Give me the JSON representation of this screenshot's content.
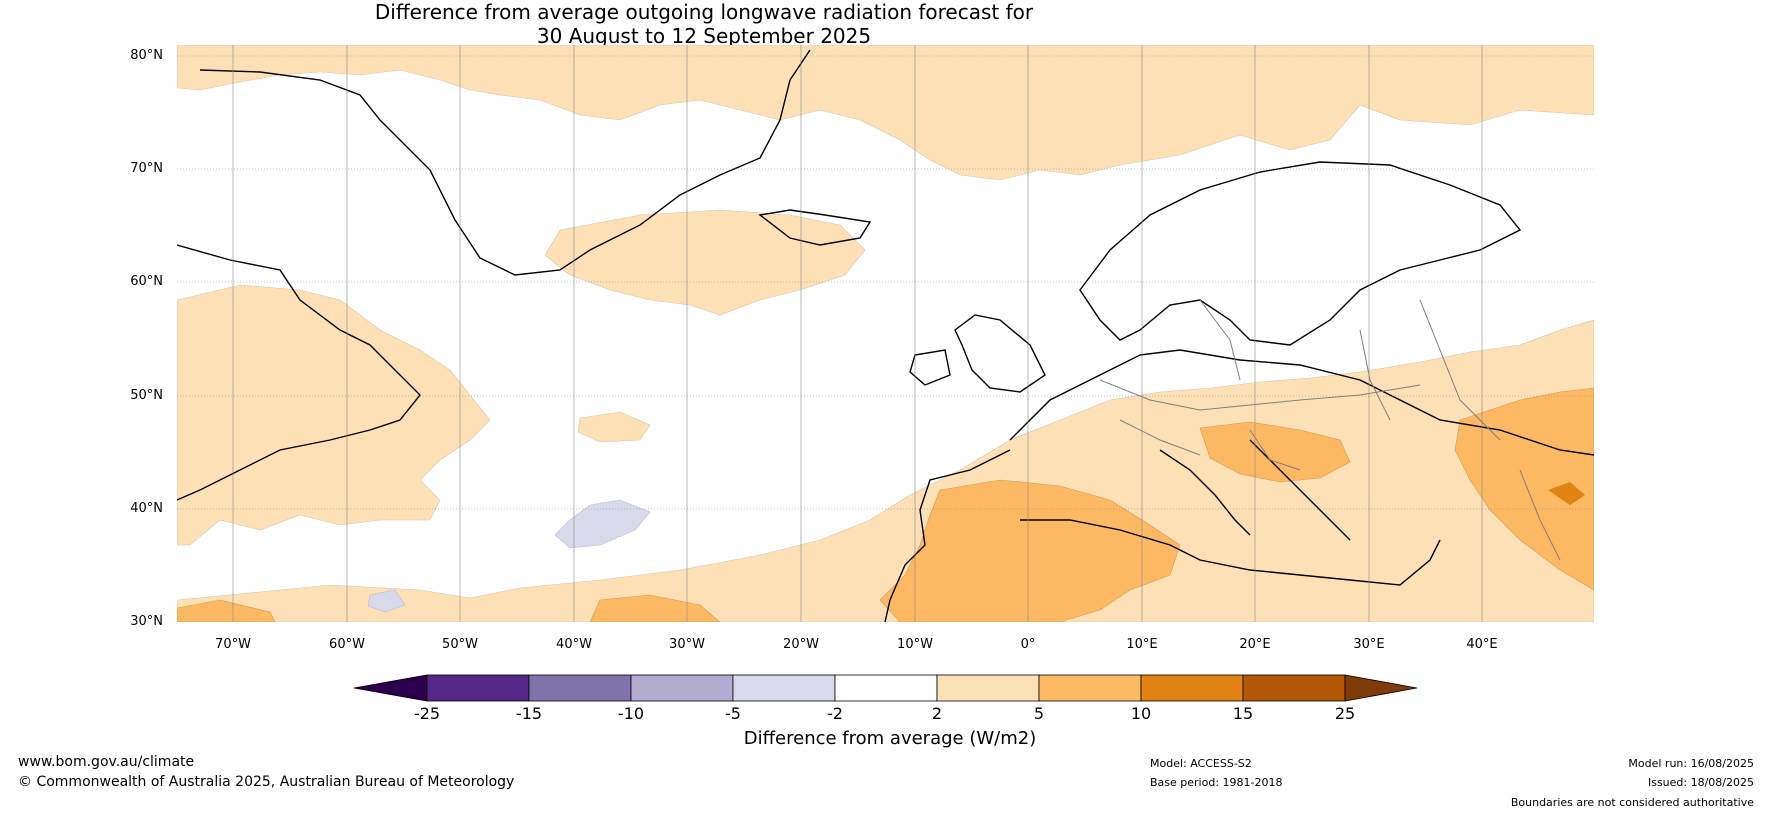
{
  "title": {
    "line1": "Difference from average outgoing longwave radiation forecast for",
    "line2": "30 August to 12 September 2025"
  },
  "axes": {
    "lat_labels": [
      "80°N",
      "70°N",
      "60°N",
      "50°N",
      "40°N",
      "30°N"
    ],
    "lon_labels": [
      "70°W",
      "60°W",
      "50°W",
      "40°W",
      "30°W",
      "20°W",
      "10°W",
      "0°",
      "10°E",
      "20°E",
      "30°E",
      "40°E"
    ]
  },
  "colorbar": {
    "title": "Difference from average (W/m2)",
    "tick_labels": [
      "-25",
      "-15",
      "-10",
      "-5",
      "-2",
      "2",
      "5",
      "10",
      "15",
      "25"
    ],
    "bins": [
      {
        "range": "< -25",
        "color": "#2d004b"
      },
      {
        "range": "-25 to -15",
        "color": "#542788"
      },
      {
        "range": "-15 to -10",
        "color": "#8073ac"
      },
      {
        "range": "-10 to -5",
        "color": "#b2abd2"
      },
      {
        "range": "-5 to -2",
        "color": "#d8daeb"
      },
      {
        "range": "-2 to 2",
        "color": "#ffffff"
      },
      {
        "range": "2 to 5",
        "color": "#fee0b6"
      },
      {
        "range": "5 to 10",
        "color": "#fdb863"
      },
      {
        "range": "10 to 15",
        "color": "#e08214"
      },
      {
        "range": "15 to 25",
        "color": "#b35806"
      },
      {
        "range": "> 25",
        "color": "#7f3b08"
      }
    ]
  },
  "footer": {
    "website": "www.bom.gov.au/climate",
    "copyright": "© Commonwealth of Australia 2025, Australian Bureau of Meteorology",
    "model": "Model: ACCESS-S2",
    "base_period": "Base period: 1981-2018",
    "model_run": "Model run: 16/08/2025",
    "issued": "Issued: 18/08/2025",
    "disclaimer": "Boundaries are not considered authoritative"
  },
  "map": {
    "extent": {
      "lon": [
        -75,
        50
      ],
      "lat": [
        30,
        81
      ]
    },
    "region": "North Atlantic and Europe",
    "colors": {
      "coastline": "#000000",
      "borders": "#808080",
      "gridline": "#888888"
    }
  }
}
